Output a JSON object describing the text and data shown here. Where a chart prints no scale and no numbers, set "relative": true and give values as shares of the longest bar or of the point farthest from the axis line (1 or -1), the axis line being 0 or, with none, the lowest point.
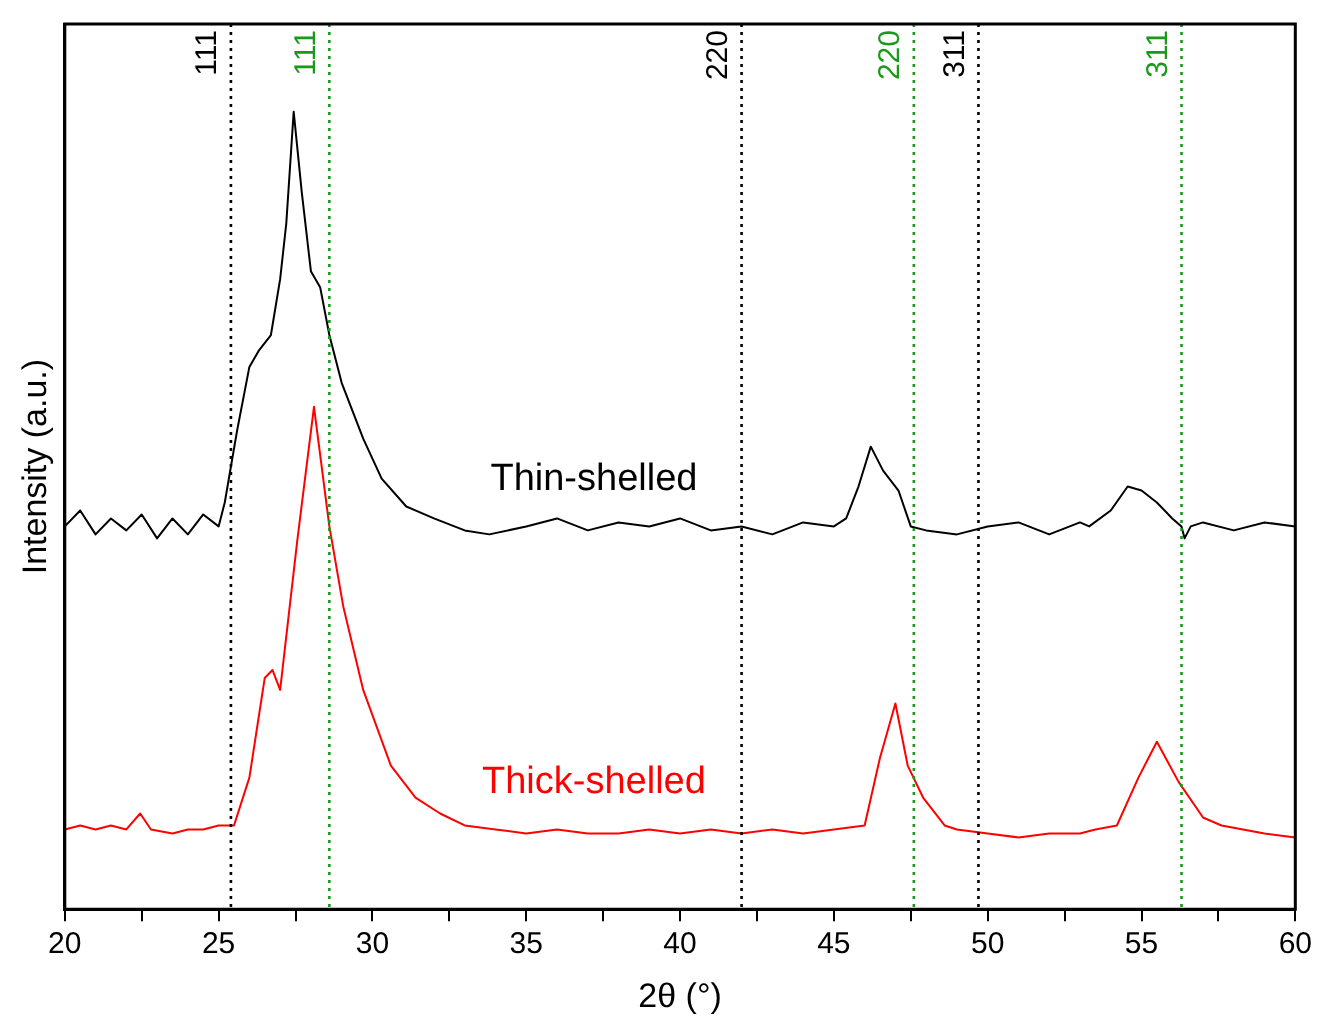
{
  "chart_data": {
    "type": "line",
    "xlabel": "2θ (°)",
    "ylabel": "Intensity (a.u.)",
    "relative": true,
    "legend": false,
    "grid": false,
    "marker": "none",
    "line_style": "solid",
    "tick_labels": "x",
    "xlim": [
      20,
      60
    ],
    "xticks": [
      20,
      {
        "value": 22.5,
        "label": null
      },
      25,
      {
        "value": 27.5,
        "label": null
      },
      30,
      {
        "value": 32.5,
        "label": null
      },
      35,
      {
        "value": 37.5,
        "label": null
      },
      40,
      {
        "value": 42.5,
        "label": null
      },
      45,
      {
        "value": 47.5,
        "label": null
      },
      50,
      {
        "value": 52.5,
        "label": null
      },
      55,
      {
        "value": 57.5,
        "label": null
      },
      60
    ],
    "series": [
      {
        "name": "Thin-shelled",
        "color": "#000000",
        "x": [
          20,
          20.5,
          21,
          21.5,
          22,
          22.5,
          23,
          23.5,
          24,
          24.5,
          25,
          25.2,
          25.6,
          26.0,
          26.3,
          26.7,
          27.0,
          27.2,
          27.44,
          27.7,
          28.0,
          28.3,
          28.6,
          29.0,
          29.7,
          30.3,
          31.1,
          32,
          33,
          33.8,
          35,
          36,
          37,
          38,
          39,
          40,
          41,
          42,
          43,
          44,
          45,
          45.4,
          45.8,
          46.2,
          46.6,
          47.1,
          47.5,
          48,
          49,
          50,
          51,
          52,
          53,
          53.3,
          54,
          54.55,
          55,
          55.5,
          56,
          56.3,
          56.4,
          56.6,
          57,
          58,
          59,
          60
        ],
        "values": [
          0.48,
          0.5,
          0.47,
          0.49,
          0.475,
          0.495,
          0.465,
          0.49,
          0.47,
          0.495,
          0.48,
          0.51,
          0.6,
          0.68,
          0.7,
          0.72,
          0.79,
          0.86,
          1.0,
          0.9,
          0.8,
          0.78,
          0.72,
          0.66,
          0.59,
          0.54,
          0.505,
          0.49,
          0.475,
          0.47,
          0.48,
          0.49,
          0.475,
          0.485,
          0.48,
          0.49,
          0.475,
          0.48,
          0.47,
          0.485,
          0.48,
          0.49,
          0.53,
          0.58,
          0.55,
          0.525,
          0.48,
          0.475,
          0.47,
          0.48,
          0.485,
          0.47,
          0.485,
          0.48,
          0.5,
          0.53,
          0.525,
          0.51,
          0.49,
          0.48,
          0.465,
          0.48,
          0.485,
          0.475,
          0.485,
          0.48
        ]
      },
      {
        "name": "Thick-shelled",
        "color": "#ff0000",
        "x": [
          20,
          20.5,
          21,
          21.5,
          22,
          22.45,
          22.8,
          23.5,
          24,
          24.5,
          25,
          25.5,
          26.0,
          26.5,
          26.75,
          27.0,
          27.55,
          28.1,
          28.6,
          29.05,
          29.7,
          30.6,
          31.4,
          32.2,
          33,
          34,
          35,
          36,
          37,
          38,
          39,
          40,
          41,
          42,
          43,
          44,
          45,
          46,
          46.5,
          47,
          47.4,
          47.9,
          48.6,
          49,
          50,
          51,
          52,
          53,
          53.5,
          54.2,
          54.9,
          55.5,
          56.2,
          57,
          57.6,
          58.3,
          59,
          60
        ],
        "values": [
          0.1,
          0.105,
          0.1,
          0.105,
          0.1,
          0.12,
          0.1,
          0.095,
          0.1,
          0.1,
          0.105,
          0.105,
          0.165,
          0.29,
          0.3,
          0.275,
          0.46,
          0.63,
          0.48,
          0.38,
          0.275,
          0.18,
          0.14,
          0.12,
          0.105,
          0.1,
          0.095,
          0.1,
          0.095,
          0.095,
          0.1,
          0.095,
          0.1,
          0.095,
          0.1,
          0.095,
          0.1,
          0.105,
          0.19,
          0.258,
          0.18,
          0.14,
          0.105,
          0.1,
          0.095,
          0.09,
          0.095,
          0.095,
          0.1,
          0.105,
          0.165,
          0.21,
          0.16,
          0.115,
          0.105,
          0.1,
          0.095,
          0.09
        ]
      }
    ],
    "ref_lines": [
      {
        "axis": "x",
        "value": 25.4,
        "color": "#000000",
        "line_style": "dotted"
      },
      {
        "axis": "x",
        "value": 28.6,
        "color": "#1a9a1a",
        "line_style": "dotted"
      },
      {
        "axis": "x",
        "value": 42.0,
        "color": "#000000",
        "line_style": "dotted"
      },
      {
        "axis": "x",
        "value": 47.6,
        "color": "#1a9a1a",
        "line_style": "dotted"
      },
      {
        "axis": "x",
        "value": 49.7,
        "color": "#000000",
        "line_style": "dotted"
      },
      {
        "axis": "x",
        "value": 56.3,
        "color": "#1a9a1a",
        "line_style": "dotted"
      }
    ],
    "annotations": [
      {
        "text": "111",
        "x": 25.4
      },
      {
        "text": "111",
        "x": 28.6
      },
      {
        "text": "220",
        "x": 42.0
      },
      {
        "text": "220",
        "x": 47.6
      },
      {
        "text": "311",
        "x": 49.7
      },
      {
        "text": "311",
        "x": 56.3
      }
    ]
  }
}
